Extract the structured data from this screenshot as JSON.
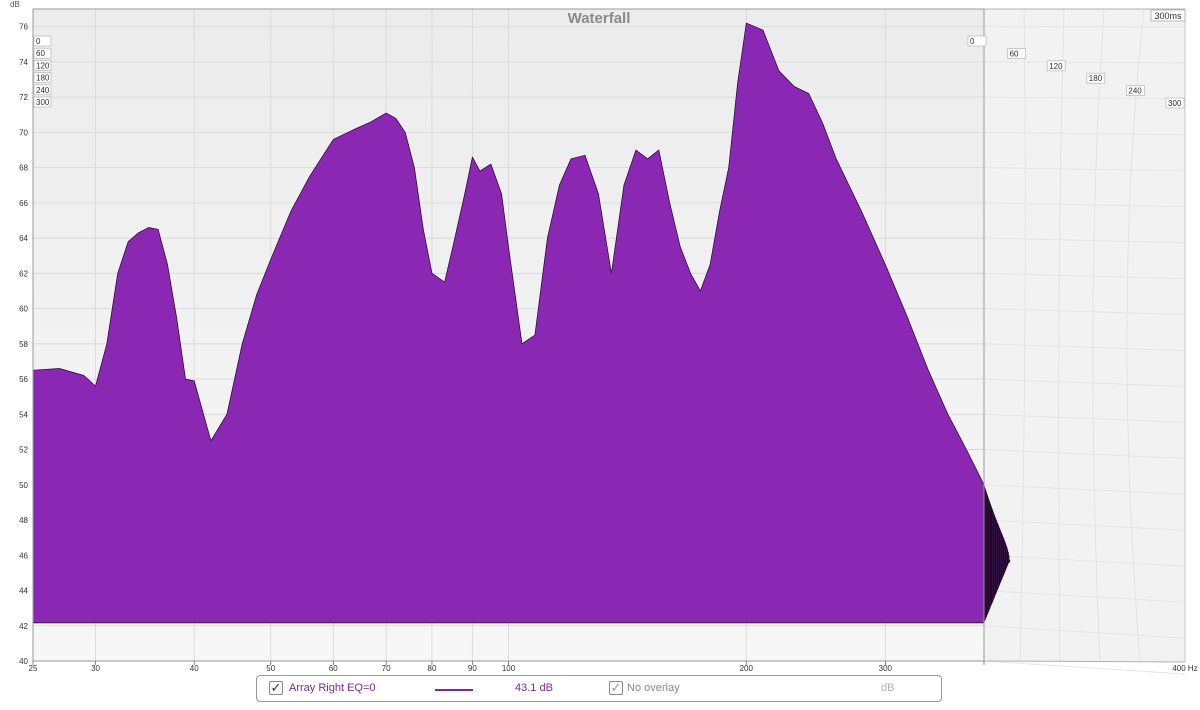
{
  "chart_data": {
    "type": "area",
    "title": "Waterfall",
    "xlabel": "Hz",
    "ylabel": "dB",
    "x_scale": "log",
    "xlim": [
      25,
      400
    ],
    "ylim": [
      40,
      77
    ],
    "x_ticks": [
      {
        "value": 25,
        "label": "25"
      },
      {
        "value": 30,
        "label": "30"
      },
      {
        "value": 40,
        "label": "40"
      },
      {
        "value": 50,
        "label": "50"
      },
      {
        "value": 60,
        "label": "60"
      },
      {
        "value": 70,
        "label": "70"
      },
      {
        "value": 80,
        "label": "80"
      },
      {
        "value": 90,
        "label": "90"
      },
      {
        "value": 100,
        "label": "100"
      },
      {
        "value": 200,
        "label": "200"
      },
      {
        "value": 300,
        "label": "300"
      },
      {
        "value": 400,
        "label": "400 Hz"
      }
    ],
    "y_ticks": [
      40,
      42,
      44,
      46,
      48,
      50,
      52,
      54,
      56,
      58,
      60,
      62,
      64,
      66,
      68,
      70,
      72,
      74,
      76
    ],
    "time_ticks": [
      {
        "label": "0",
        "value": 0
      },
      {
        "label": "60",
        "value": 60
      },
      {
        "label": "120",
        "value": 120
      },
      {
        "label": "180",
        "value": 180
      },
      {
        "label": "240",
        "value": 240
      },
      {
        "label": "300",
        "value": 300
      }
    ],
    "time_max_label": "300ms",
    "time_range_ms": [
      0,
      300
    ],
    "slice_count": 40,
    "grid": true,
    "fill_color": "#8a28b4",
    "line_color": "#1c0a24",
    "series": [
      {
        "name": "Array Right EQ=0",
        "time_ms": 0,
        "x": [
          25,
          27,
          29,
          30,
          31,
          32,
          33,
          34,
          35,
          36,
          37,
          38,
          39,
          40,
          42,
          44,
          46,
          48,
          50,
          53,
          56,
          60,
          64,
          67,
          70,
          72,
          74,
          76,
          78,
          80,
          83,
          85,
          88,
          90,
          92,
          95,
          98,
          100,
          104,
          108,
          112,
          116,
          120,
          125,
          130,
          135,
          140,
          145,
          150,
          155,
          160,
          165,
          170,
          175,
          180,
          185,
          190,
          195,
          200,
          210,
          220,
          230,
          240,
          250,
          260,
          280,
          300,
          320,
          340,
          360,
          380,
          400
        ],
        "values": [
          56.5,
          56.6,
          56.2,
          55.6,
          58,
          62,
          63.8,
          64.3,
          64.6,
          64.5,
          62.5,
          59.5,
          56,
          55.9,
          52.5,
          54,
          58,
          60.8,
          62.8,
          65.5,
          67.5,
          69.6,
          70.2,
          70.6,
          71.1,
          70.8,
          70,
          68,
          64.5,
          62,
          61.5,
          63.5,
          66.5,
          68.6,
          67.8,
          68.2,
          66.5,
          63.5,
          58,
          58.5,
          64,
          67,
          68.5,
          68.7,
          66.5,
          62,
          67,
          69,
          68.5,
          69,
          66,
          63.5,
          62,
          61,
          62.5,
          65.5,
          68,
          72.8,
          76.2,
          75.8,
          73.5,
          72.6,
          72.2,
          70.5,
          68.5,
          65.5,
          62.5,
          59.5,
          56.5,
          54,
          52,
          50
        ]
      }
    ]
  },
  "legend": {
    "series_name": "Array Right EQ=0",
    "series_checked": true,
    "value": "43.1 dB",
    "overlay_label": "No overlay",
    "overlay_checked": true,
    "unit": "dB",
    "check_glyph": "✓"
  }
}
